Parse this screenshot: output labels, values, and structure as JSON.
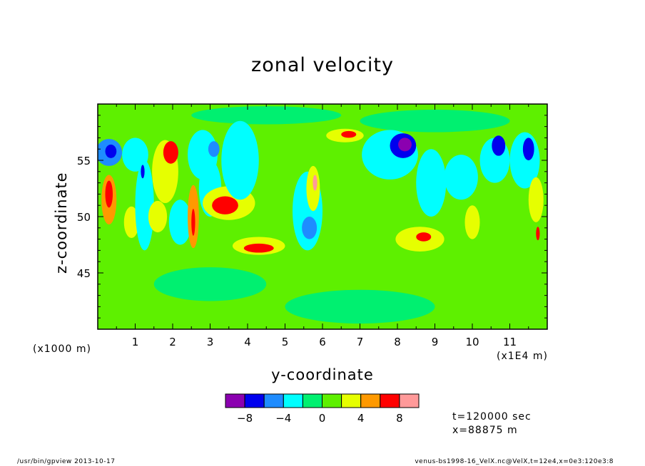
{
  "chart_data": {
    "type": "heatmap",
    "title": "zonal velocity",
    "xlabel": "y-coordinate",
    "ylabel": "z-coordinate",
    "x_unit": "(x1E4 m)",
    "y_unit": "(x1000 m)",
    "xlim": [
      0,
      12
    ],
    "ylim": [
      40,
      60
    ],
    "x_ticks": [
      "1",
      "2",
      "3",
      "4",
      "5",
      "6",
      "7",
      "8",
      "9",
      "10",
      "11"
    ],
    "y_ticks": [
      "45",
      "50",
      "55"
    ],
    "colorbar": {
      "levels": [
        -10,
        -8,
        -6,
        -4,
        -2,
        0,
        2,
        4,
        6,
        8,
        10
      ],
      "tick_labels": [
        "-8",
        "-4",
        "0",
        "4",
        "8"
      ],
      "colors": [
        "#8b00b0",
        "#0000ee",
        "#1e8cff",
        "#00ffff",
        "#00f070",
        "#5ef000",
        "#e6ff00",
        "#ff9900",
        "#ff0000",
        "#ff9999"
      ]
    },
    "background_value": 1,
    "features": [
      {
        "y": 0.3,
        "z": 55.7,
        "value": -4.5,
        "ry": 0.35,
        "rz": 1.2
      },
      {
        "y": 0.35,
        "z": 55.8,
        "value": -6.5,
        "ry": 0.15,
        "rz": 0.6
      },
      {
        "y": 0.3,
        "z": 51.5,
        "value": 4.5,
        "ry": 0.2,
        "rz": 2.2
      },
      {
        "y": 0.3,
        "z": 52.0,
        "value": 6.5,
        "ry": 0.1,
        "rz": 1.2
      },
      {
        "y": 0.9,
        "z": 49.5,
        "value": 3.5,
        "ry": 0.2,
        "rz": 1.4
      },
      {
        "y": 1.0,
        "z": 55.5,
        "value": -3.5,
        "ry": 0.35,
        "rz": 1.5
      },
      {
        "y": 1.25,
        "z": 51.0,
        "value": -3.5,
        "ry": 0.25,
        "rz": 4.0
      },
      {
        "y": 1.2,
        "z": 54.0,
        "value": -6.5,
        "ry": 0.05,
        "rz": 0.6
      },
      {
        "y": 1.6,
        "z": 50.0,
        "value": 3.5,
        "ry": 0.25,
        "rz": 1.4
      },
      {
        "y": 1.8,
        "z": 54.0,
        "value": 3.5,
        "ry": 0.35,
        "rz": 2.8
      },
      {
        "y": 1.95,
        "z": 55.7,
        "value": 6.5,
        "ry": 0.2,
        "rz": 1.0
      },
      {
        "y": 2.2,
        "z": 49.5,
        "value": -3.5,
        "ry": 0.3,
        "rz": 2.0
      },
      {
        "y": 2.55,
        "z": 50.0,
        "value": 4.5,
        "ry": 0.15,
        "rz": 2.8
      },
      {
        "y": 2.55,
        "z": 49.5,
        "value": 6.5,
        "ry": 0.05,
        "rz": 1.2
      },
      {
        "y": 2.8,
        "z": 55.5,
        "value": -3.5,
        "ry": 0.4,
        "rz": 2.2
      },
      {
        "y": 3.0,
        "z": 52.5,
        "value": -3.5,
        "ry": 0.3,
        "rz": 2.5
      },
      {
        "y": 3.1,
        "z": 56.0,
        "value": -5.5,
        "ry": 0.15,
        "rz": 0.7
      },
      {
        "y": 3.5,
        "z": 51.2,
        "value": 3.5,
        "ry": 0.7,
        "rz": 1.5
      },
      {
        "y": 3.4,
        "z": 51.0,
        "value": 6.0,
        "ry": 0.35,
        "rz": 0.8
      },
      {
        "y": 3.8,
        "z": 55.0,
        "value": -3.5,
        "ry": 0.5,
        "rz": 3.5
      },
      {
        "y": 4.3,
        "z": 47.4,
        "value": 3.5,
        "ry": 0.7,
        "rz": 0.8
      },
      {
        "y": 4.3,
        "z": 47.2,
        "value": 6.0,
        "ry": 0.4,
        "rz": 0.4
      },
      {
        "y": 5.6,
        "z": 50.5,
        "value": -3.5,
        "ry": 0.4,
        "rz": 3.5
      },
      {
        "y": 5.65,
        "z": 49.0,
        "value": -6.0,
        "ry": 0.2,
        "rz": 1.0
      },
      {
        "y": 5.75,
        "z": 52.5,
        "value": 3.5,
        "ry": 0.18,
        "rz": 2.0
      },
      {
        "y": 5.8,
        "z": 53.0,
        "value": 8.5,
        "ry": 0.06,
        "rz": 0.7
      },
      {
        "y": 6.6,
        "z": 57.2,
        "value": 3.5,
        "ry": 0.5,
        "rz": 0.6
      },
      {
        "y": 6.7,
        "z": 57.3,
        "value": 6.0,
        "ry": 0.2,
        "rz": 0.3
      },
      {
        "y": 7.8,
        "z": 55.5,
        "value": -3.5,
        "ry": 0.75,
        "rz": 2.2
      },
      {
        "y": 8.15,
        "z": 56.3,
        "value": -6.5,
        "ry": 0.35,
        "rz": 1.1
      },
      {
        "y": 8.2,
        "z": 56.4,
        "value": -8.5,
        "ry": 0.18,
        "rz": 0.6
      },
      {
        "y": 8.9,
        "z": 53.0,
        "value": -3.5,
        "ry": 0.4,
        "rz": 3.0
      },
      {
        "y": 8.6,
        "z": 48.0,
        "value": 3.5,
        "ry": 0.65,
        "rz": 1.1
      },
      {
        "y": 8.7,
        "z": 48.2,
        "value": 6.0,
        "ry": 0.2,
        "rz": 0.4
      },
      {
        "y": 9.7,
        "z": 53.5,
        "value": -3.5,
        "ry": 0.45,
        "rz": 2.0
      },
      {
        "y": 10.0,
        "z": 49.5,
        "value": 3.5,
        "ry": 0.2,
        "rz": 1.5
      },
      {
        "y": 10.6,
        "z": 55.0,
        "value": -3.5,
        "ry": 0.4,
        "rz": 2.0
      },
      {
        "y": 10.7,
        "z": 56.3,
        "value": -6.5,
        "ry": 0.18,
        "rz": 0.9
      },
      {
        "y": 11.4,
        "z": 55.0,
        "value": -3.5,
        "ry": 0.4,
        "rz": 2.5
      },
      {
        "y": 11.5,
        "z": 56.0,
        "value": -6.5,
        "ry": 0.15,
        "rz": 1.0
      },
      {
        "y": 11.7,
        "z": 51.5,
        "value": 3.5,
        "ry": 0.2,
        "rz": 2.0
      },
      {
        "y": 11.75,
        "z": 48.5,
        "value": 6.0,
        "ry": 0.05,
        "rz": 0.6
      },
      {
        "y": 3.0,
        "z": 44.0,
        "value": -1.0,
        "ry": 1.5,
        "rz": 1.5
      },
      {
        "y": 7.0,
        "z": 42.0,
        "value": -1.0,
        "ry": 2.0,
        "rz": 1.5
      },
      {
        "y": 9.0,
        "z": 58.5,
        "value": -1.0,
        "ry": 2.0,
        "rz": 1.0
      },
      {
        "y": 4.5,
        "z": 59.0,
        "value": -1.0,
        "ry": 2.0,
        "rz": 0.8
      }
    ]
  },
  "info": {
    "time": "t=120000 sec",
    "position": "x=88875 m"
  },
  "footer": {
    "left": "/usr/bin/gpview  2013-10-17",
    "right": "venus-bs1998-16_VelX.nc@VelX,t=12e4,x=0e3:120e3:8"
  }
}
